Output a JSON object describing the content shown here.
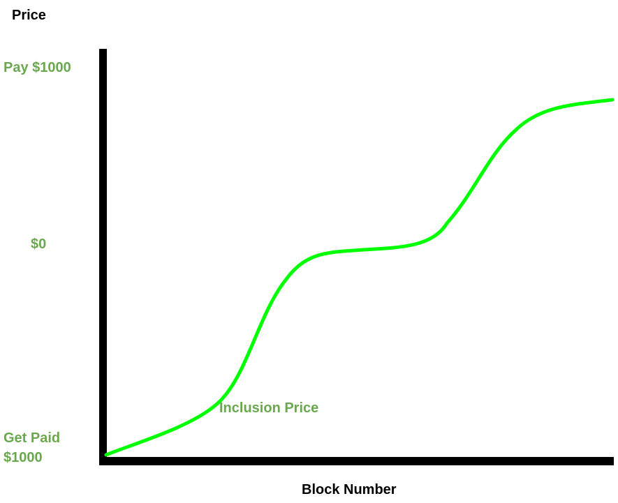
{
  "diagram": {
    "y_axis_title": "Price",
    "x_axis_title": "Block Number",
    "y_ticks": {
      "top": "Pay $1000",
      "middle": "$0",
      "bottom_line1": "Get Paid",
      "bottom_line2": "$1000"
    },
    "curve_label": "Inclusion Price",
    "colors": {
      "axes": "#000000",
      "curve": "#00ff00",
      "label_text": "#6aa84f"
    }
  }
}
